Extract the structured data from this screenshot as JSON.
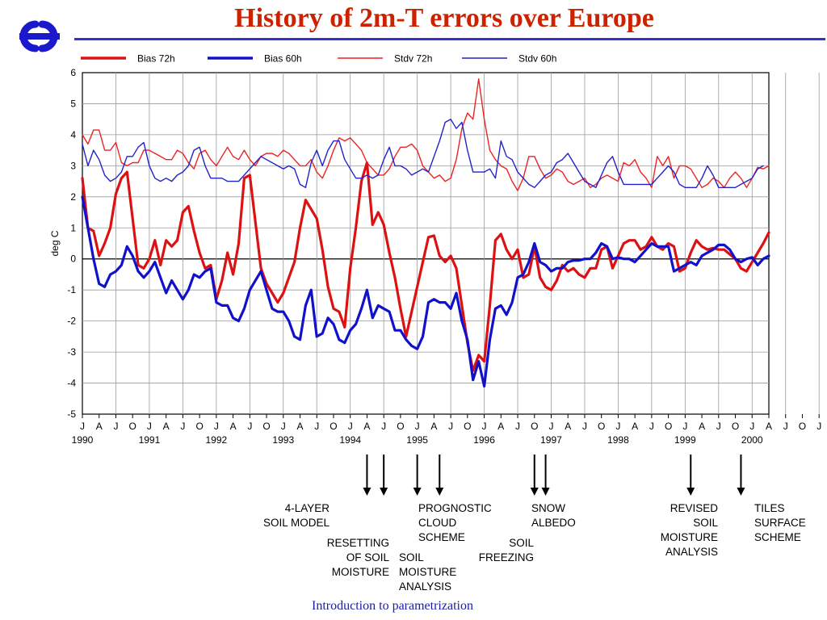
{
  "slide": {
    "title": "History of 2m-T errors over Europe",
    "footer": "Introduction to parametrization",
    "title_color": "#cc2200",
    "rule_color": "#3333cc",
    "footer_color": "#1a1aaa",
    "logo_icon": "ecmwf-logo-icon",
    "logo_color": "#1a1acc"
  },
  "chart_data": {
    "type": "line",
    "title": "",
    "xlabel": "",
    "ylabel": "deg C",
    "ylim": [
      -5,
      6
    ],
    "yticks": [
      -5,
      -4,
      -3,
      -2,
      -1,
      0,
      1,
      2,
      3,
      4,
      5,
      6
    ],
    "x_start": "1990-01",
    "month_ticks": [
      "J",
      "A",
      "J",
      "O",
      "J",
      "A",
      "J",
      "O",
      "J",
      "A",
      "J",
      "O",
      "J",
      "A",
      "J",
      "O",
      "J",
      "A",
      "J",
      "O",
      "J",
      "A",
      "J",
      "O",
      "J",
      "A",
      "J",
      "O",
      "J",
      "A",
      "J",
      "O",
      "J",
      "A",
      "J",
      "O",
      "J",
      "A",
      "J",
      "O",
      "J",
      "A",
      "J",
      "O",
      "J",
      "A"
    ],
    "year_labels": [
      "1990",
      "1991",
      "1992",
      "1993",
      "1994",
      "1995",
      "1996",
      "1997",
      "1998",
      "1999",
      "2000"
    ],
    "grid": true,
    "legend_position": "top",
    "series": [
      {
        "name": "Bias 72h",
        "color": "#dd1111",
        "width": 3.2,
        "values": [
          2.6,
          1.0,
          0.9,
          0.1,
          0.5,
          1.0,
          2.1,
          2.6,
          2.8,
          1.3,
          -0.2,
          -0.3,
          0.0,
          0.6,
          -0.2,
          0.6,
          0.4,
          0.6,
          1.5,
          1.7,
          0.9,
          0.2,
          -0.3,
          -0.2,
          -1.3,
          -0.7,
          0.2,
          -0.5,
          0.5,
          2.6,
          2.7,
          1.2,
          -0.3,
          -0.8,
          -1.1,
          -1.4,
          -1.1,
          -0.6,
          -0.1,
          1.0,
          1.9,
          1.6,
          1.3,
          0.3,
          -0.9,
          -1.6,
          -1.7,
          -2.2,
          -0.3,
          1.0,
          2.5,
          3.1,
          1.1,
          1.5,
          1.1,
          0.2,
          -0.6,
          -1.6,
          -2.5,
          -1.7,
          -0.9,
          -0.1,
          0.7,
          0.75,
          0.1,
          -0.1,
          0.1,
          -0.3,
          -1.5,
          -2.7,
          -3.6,
          -3.1,
          -3.3,
          -1.5,
          0.6,
          0.8,
          0.3,
          0.0,
          0.3,
          -0.6,
          -0.5,
          0.4,
          -0.6,
          -0.9,
          -1.0,
          -0.7,
          -0.2,
          -0.4,
          -0.3,
          -0.5,
          -0.6,
          -0.3,
          -0.3,
          0.3,
          0.4,
          -0.3,
          0.1,
          0.5,
          0.6,
          0.6,
          0.3,
          0.4,
          0.7,
          0.4,
          0.3,
          0.5,
          0.4,
          -0.4,
          -0.3,
          0.2,
          0.6,
          0.4,
          0.3,
          0.35,
          0.3,
          0.3,
          0.15,
          0.0,
          -0.3,
          -0.4,
          -0.1,
          0.2,
          0.5,
          0.85
        ]
      },
      {
        "name": "Bias 60h",
        "color": "#1111cc",
        "width": 3.2,
        "values": [
          2.0,
          1.0,
          0.0,
          -0.8,
          -0.9,
          -0.5,
          -0.4,
          -0.2,
          0.4,
          0.1,
          -0.4,
          -0.6,
          -0.4,
          -0.1,
          -0.6,
          -1.1,
          -0.7,
          -1.0,
          -1.3,
          -1.0,
          -0.5,
          -0.6,
          -0.4,
          -0.3,
          -1.4,
          -1.5,
          -1.5,
          -1.9,
          -2.0,
          -1.6,
          -1.0,
          -0.7,
          -0.4,
          -1.0,
          -1.6,
          -1.7,
          -1.7,
          -2.0,
          -2.5,
          -2.6,
          -1.5,
          -1.0,
          -2.5,
          -2.4,
          -1.9,
          -2.1,
          -2.6,
          -2.7,
          -2.3,
          -2.1,
          -1.6,
          -1.0,
          -1.9,
          -1.5,
          -1.6,
          -1.7,
          -2.3,
          -2.3,
          -2.6,
          -2.8,
          -2.9,
          -2.5,
          -1.4,
          -1.3,
          -1.4,
          -1.4,
          -1.6,
          -1.1,
          -2.0,
          -2.6,
          -3.9,
          -3.3,
          -4.1,
          -2.6,
          -1.6,
          -1.5,
          -1.8,
          -1.4,
          -0.6,
          -0.5,
          -0.1,
          0.5,
          -0.1,
          -0.2,
          -0.4,
          -0.3,
          -0.3,
          -0.1,
          -0.05,
          -0.05,
          0.0,
          0.0,
          0.2,
          0.5,
          0.4,
          0.0,
          0.05,
          0.0,
          0.0,
          -0.1,
          0.1,
          0.3,
          0.5,
          0.4,
          0.4,
          0.4,
          -0.4,
          -0.3,
          -0.2,
          -0.1,
          -0.2,
          0.1,
          0.2,
          0.3,
          0.45,
          0.45,
          0.3,
          0.0,
          -0.1,
          0.0,
          0.05,
          -0.2,
          0.0,
          0.1
        ]
      },
      {
        "name": "Stdv 72h",
        "color": "#ee2222",
        "width": 1.4,
        "values": [
          4.0,
          3.7,
          4.15,
          4.15,
          3.5,
          3.5,
          3.75,
          3.1,
          3.0,
          3.1,
          3.1,
          3.5,
          3.5,
          3.4,
          3.3,
          3.2,
          3.2,
          3.5,
          3.4,
          3.1,
          2.9,
          3.4,
          3.5,
          3.2,
          3.0,
          3.3,
          3.6,
          3.3,
          3.2,
          3.5,
          3.2,
          3.0,
          3.3,
          3.4,
          3.4,
          3.3,
          3.5,
          3.4,
          3.2,
          3.0,
          3.0,
          3.2,
          2.8,
          2.6,
          3.0,
          3.5,
          3.9,
          3.8,
          3.9,
          3.7,
          3.5,
          3.1,
          2.9,
          2.7,
          2.7,
          2.9,
          3.3,
          3.6,
          3.6,
          3.7,
          3.5,
          3.0,
          2.8,
          2.6,
          2.7,
          2.5,
          2.6,
          3.2,
          4.2,
          4.7,
          4.5,
          5.8,
          4.5,
          3.5,
          3.2,
          3.0,
          2.9,
          2.5,
          2.2,
          2.6,
          3.3,
          3.3,
          2.9,
          2.6,
          2.7,
          2.9,
          2.8,
          2.5,
          2.4,
          2.5,
          2.6,
          2.3,
          2.4,
          2.6,
          2.7,
          2.6,
          2.5,
          3.1,
          3.0,
          3.2,
          2.8,
          2.6,
          2.3,
          3.3,
          3.0,
          3.3,
          2.6,
          3.0,
          3.0,
          2.9,
          2.6,
          2.3,
          2.4,
          2.6,
          2.5,
          2.3,
          2.6,
          2.8,
          2.6,
          2.3,
          2.6,
          2.95,
          2.9,
          3.0
        ]
      },
      {
        "name": "Stdv 60h",
        "color": "#2222cc",
        "width": 1.4,
        "values": [
          3.7,
          3.0,
          3.5,
          3.2,
          2.7,
          2.5,
          2.6,
          2.8,
          3.3,
          3.3,
          3.6,
          3.75,
          3.0,
          2.6,
          2.5,
          2.6,
          2.5,
          2.7,
          2.8,
          3.0,
          3.5,
          3.6,
          3.0,
          2.6,
          2.6,
          2.6,
          2.5,
          2.5,
          2.5,
          2.7,
          2.9,
          3.1,
          3.3,
          3.2,
          3.1,
          3.0,
          2.9,
          3.0,
          2.9,
          2.4,
          2.3,
          3.1,
          3.5,
          3.0,
          3.5,
          3.8,
          3.8,
          3.2,
          2.9,
          2.6,
          2.6,
          2.7,
          2.6,
          2.7,
          3.2,
          3.6,
          3.0,
          3.0,
          2.9,
          2.7,
          2.8,
          2.9,
          2.8,
          3.3,
          3.8,
          4.4,
          4.5,
          4.2,
          4.4,
          3.5,
          2.8,
          2.8,
          2.8,
          2.9,
          2.6,
          3.8,
          3.3,
          3.2,
          2.8,
          2.6,
          2.4,
          2.3,
          2.5,
          2.7,
          2.8,
          3.1,
          3.2,
          3.4,
          3.1,
          2.8,
          2.5,
          2.4,
          2.3,
          2.7,
          3.1,
          3.3,
          2.8,
          2.4,
          2.4,
          2.4,
          2.4,
          2.4,
          2.4,
          2.6,
          2.8,
          3.0,
          2.8,
          2.4,
          2.3,
          2.3,
          2.3,
          2.6,
          3.0,
          2.7,
          2.3,
          2.3,
          2.3,
          2.3,
          2.4,
          2.5,
          2.6,
          2.9,
          3.0
        ]
      }
    ],
    "annotations": [
      {
        "lines": [
          "4-LAYER",
          "SOIL MODEL"
        ],
        "align": "end",
        "month": 51
      },
      {
        "lines": [
          "RESETTING",
          "OF SOIL",
          "MOISTURE"
        ],
        "align": "end",
        "month": 54
      },
      {
        "lines": [
          "SOIL",
          "MOISTURE",
          "ANALYSIS"
        ],
        "align": "start",
        "month": 60
      },
      {
        "lines": [
          "PROGNOSTIC",
          "CLOUD",
          "SCHEME"
        ],
        "align": "start",
        "month": 64
      },
      {
        "lines": [
          "SOIL",
          "FREEZING"
        ],
        "align": "end",
        "month": 81
      },
      {
        "lines": [
          "SNOW",
          "ALBEDO"
        ],
        "align": "start",
        "month": 83
      },
      {
        "lines": [
          "REVISED",
          "SOIL",
          "MOISTURE",
          "ANALYSIS"
        ],
        "align": "end",
        "month": 109
      },
      {
        "lines": [
          "TILES",
          "SURFACE",
          "SCHEME"
        ],
        "align": "start",
        "month": 118
      }
    ]
  }
}
